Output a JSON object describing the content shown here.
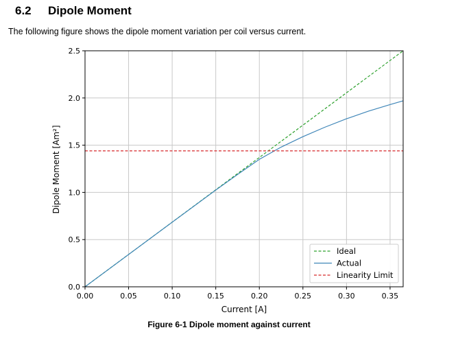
{
  "section": {
    "number": "6.2",
    "title": "Dipole Moment"
  },
  "intro_text": "The following figure shows the dipole moment variation per coil versus current.",
  "caption": "Figure 6-1 Dipole moment against current",
  "colors": {
    "ideal": "#2ca02c",
    "actual": "#3f86b8",
    "limit": "#d62728",
    "grid": "#c8c8c8"
  },
  "chart_data": {
    "type": "line",
    "xlabel": "Current [A]",
    "ylabel": "Dipole Moment [Am²]",
    "xlim": [
      0,
      0.365
    ],
    "ylim": [
      0,
      2.5
    ],
    "grid": true,
    "legend_position": "bottom-right",
    "xticks": [
      {
        "v": 0,
        "label": "0.00"
      },
      {
        "v": 0.05,
        "label": "0.05"
      },
      {
        "v": 0.1,
        "label": "0.10"
      },
      {
        "v": 0.15,
        "label": "0.15"
      },
      {
        "v": 0.2,
        "label": "0.20"
      },
      {
        "v": 0.25,
        "label": "0.25"
      },
      {
        "v": 0.3,
        "label": "0.30"
      },
      {
        "v": 0.35,
        "label": "0.35"
      }
    ],
    "yticks": [
      {
        "v": 0,
        "label": "0.0"
      },
      {
        "v": 0.5,
        "label": "0.5"
      },
      {
        "v": 1.0,
        "label": "1.0"
      },
      {
        "v": 1.5,
        "label": "1.5"
      },
      {
        "v": 2.0,
        "label": "2.0"
      },
      {
        "v": 2.5,
        "label": "2.5"
      }
    ],
    "series": [
      {
        "name": "Ideal",
        "style": "dashed",
        "color": "#2ca02c",
        "x": [
          0,
          0.365
        ],
        "y": [
          0,
          2.5
        ]
      },
      {
        "name": "Actual",
        "style": "solid",
        "color": "#3f86b8",
        "x": [
          0,
          0.05,
          0.1,
          0.15,
          0.175,
          0.2,
          0.225,
          0.25,
          0.275,
          0.3,
          0.325,
          0.35,
          0.365
        ],
        "y": [
          0,
          0.342,
          0.684,
          1.025,
          1.19,
          1.35,
          1.48,
          1.59,
          1.69,
          1.78,
          1.86,
          1.93,
          1.97
        ]
      },
      {
        "name": "Linearity Limit",
        "style": "dashed",
        "color": "#d62728",
        "x": [
          0,
          0.365
        ],
        "y": [
          1.44,
          1.44
        ]
      }
    ]
  }
}
